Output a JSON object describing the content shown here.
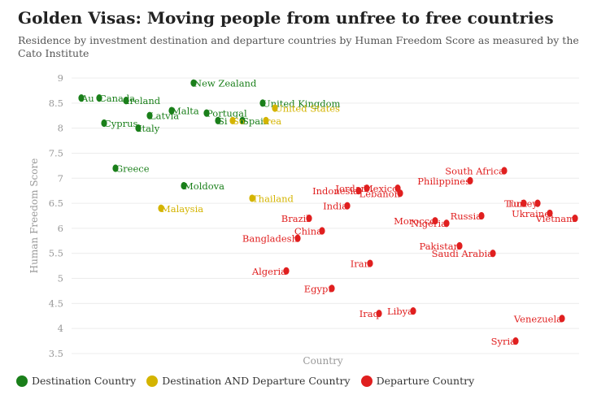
{
  "title": "Golden Visas: Moving people from unfree to free countries",
  "subtitle": "Residence by investment destination and departure countries by Human Freedom Score as measured by the Cato Institute",
  "colors": {
    "destination": "#1a7f1a",
    "both": "#d4b400",
    "departure": "#e01f1f",
    "grid": "#ececec",
    "tick": "#999999"
  },
  "legend": [
    {
      "label": "Destination Country",
      "color": "#1a7f1a"
    },
    {
      "label": "Destination AND Departure Country",
      "color": "#d4b400"
    },
    {
      "label": "Departure Country",
      "color": "#e01f1f"
    }
  ],
  "chart_data": {
    "type": "scatter",
    "xlabel": "Country",
    "ylabel": "Human Freedom Score",
    "ylim": [
      3.5,
      9
    ],
    "yticks": [
      "3.5",
      "4",
      "4.5",
      "5",
      "5.5",
      "6",
      "6.5",
      "7",
      "7.5",
      "8",
      "8.5",
      "9"
    ],
    "grid": true,
    "legend_position": "bottom-left",
    "points": [
      {
        "label": "Australia",
        "text": "Au",
        "value": 8.6,
        "group": "destination"
      },
      {
        "label": "Canada",
        "text": "Canada",
        "value": 8.6,
        "group": "destination"
      },
      {
        "label": "Ireland",
        "text": "Ireland",
        "value": 8.55,
        "group": "destination"
      },
      {
        "label": "Cyprus",
        "text": "Cyprus",
        "value": 8.1,
        "group": "destination"
      },
      {
        "label": "Italy",
        "text": "Italy",
        "value": 8.0,
        "group": "destination"
      },
      {
        "label": "Latvia",
        "text": "Latvia",
        "value": 8.25,
        "group": "destination"
      },
      {
        "label": "Malta",
        "text": "Malta",
        "value": 8.35,
        "group": "destination"
      },
      {
        "label": "New Zealand",
        "text": "New Zealand",
        "value": 8.9,
        "group": "destination"
      },
      {
        "label": "Portugal",
        "text": "Portugal",
        "value": 8.3,
        "group": "destination"
      },
      {
        "label": "Singapore",
        "text": "Si",
        "value": 8.15,
        "group": "destination"
      },
      {
        "label": "Spain",
        "text": "Spain",
        "value": 8.15,
        "group": "destination"
      },
      {
        "label": "South Korea",
        "text": "So",
        "value": 8.15,
        "group": "both"
      },
      {
        "label": "Korea",
        "text": "rea",
        "value": 8.15,
        "group": "both"
      },
      {
        "label": "United Kingdom",
        "text": "United Kingdom",
        "value": 8.5,
        "group": "destination"
      },
      {
        "label": "United States",
        "text": "United States",
        "value": 8.4,
        "group": "both"
      },
      {
        "label": "Greece",
        "text": "Greece",
        "value": 7.2,
        "group": "destination"
      },
      {
        "label": "Moldova",
        "text": "Moldova",
        "value": 6.85,
        "group": "destination"
      },
      {
        "label": "Malaysia",
        "text": "Malaysia",
        "value": 6.4,
        "group": "both"
      },
      {
        "label": "Thailand",
        "text": "Thailand",
        "value": 6.6,
        "group": "both"
      },
      {
        "label": "Indonesia",
        "text": "Indonesia",
        "value": 6.75,
        "group": "departure"
      },
      {
        "label": "Jordan",
        "text": "Jordan",
        "value": 6.8,
        "group": "departure"
      },
      {
        "label": "Lebanon",
        "text": "Lebanon",
        "value": 6.7,
        "group": "departure"
      },
      {
        "label": "Mexico",
        "text": "Mexico",
        "value": 6.8,
        "group": "departure"
      },
      {
        "label": "Philippines",
        "text": "Philippines",
        "value": 6.95,
        "group": "departure"
      },
      {
        "label": "South Africa",
        "text": "South Africa",
        "value": 7.15,
        "group": "departure"
      },
      {
        "label": "India",
        "text": "India",
        "value": 6.45,
        "group": "departure"
      },
      {
        "label": "Brazil",
        "text": "Brazil",
        "value": 6.2,
        "group": "departure"
      },
      {
        "label": "China",
        "text": "China",
        "value": 5.95,
        "group": "departure"
      },
      {
        "label": "Bangladesh",
        "text": "Bangladesh",
        "value": 5.8,
        "group": "departure"
      },
      {
        "label": "Morocco",
        "text": "Morocco",
        "value": 6.15,
        "group": "departure"
      },
      {
        "label": "Nigeria",
        "text": "Nigeria",
        "value": 6.1,
        "group": "departure"
      },
      {
        "label": "Russia",
        "text": "Russia",
        "value": 6.25,
        "group": "departure"
      },
      {
        "label": "Turkey",
        "text": "Tur",
        "value": 6.5,
        "group": "departure"
      },
      {
        "label": "Turkey",
        "text": "Turkey",
        "value": 6.5,
        "group": "departure"
      },
      {
        "label": "Ukraine",
        "text": "Ukraine",
        "value": 6.3,
        "group": "departure"
      },
      {
        "label": "Vietnam",
        "text": "Vietnam",
        "value": 6.2,
        "group": "departure"
      },
      {
        "label": "Pakistan",
        "text": "Pakistan",
        "value": 5.65,
        "group": "departure"
      },
      {
        "label": "Saudi Arabia",
        "text": "Saudi Arabia",
        "value": 5.5,
        "group": "departure"
      },
      {
        "label": "Iran",
        "text": "Iran",
        "value": 5.3,
        "group": "departure"
      },
      {
        "label": "Algeria",
        "text": "Algeria",
        "value": 5.15,
        "group": "departure"
      },
      {
        "label": "Egypt",
        "text": "Egypt",
        "value": 4.8,
        "group": "departure"
      },
      {
        "label": "Iraq",
        "text": "Iraq",
        "value": 4.3,
        "group": "departure"
      },
      {
        "label": "Libya",
        "text": "Libya",
        "value": 4.35,
        "group": "departure"
      },
      {
        "label": "Venezuela",
        "text": "Venezuela",
        "value": 4.2,
        "group": "departure"
      },
      {
        "label": "Syria",
        "text": "Syria",
        "value": 3.75,
        "group": "departure"
      }
    ]
  }
}
